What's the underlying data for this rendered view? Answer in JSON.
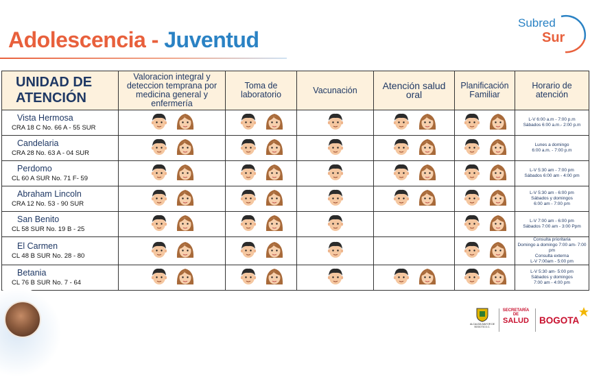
{
  "title": {
    "part1": "Adolescencia",
    "dash": " - ",
    "part2": "Juventud"
  },
  "logo": {
    "line1": "Subred",
    "line2": "Sur"
  },
  "table": {
    "headers": [
      "UNIDAD DE ATENCIÓN",
      "Valoracion integral y deteccion temprana por medicina general y enfermería",
      "Toma de laboratorio",
      "Vacunación",
      "Atención salud oral",
      "Planificación Familiar",
      "Horario de atención"
    ],
    "rows": [
      {
        "name": "Vista Hermosa",
        "address": "CRA 18 C No. 66 A - 55 SUR",
        "services": [
          "both",
          "both",
          "boy",
          "both",
          "both"
        ],
        "hours": [
          "L-V 6:00 a.m - 7:00 p.m",
          "Sábados 6:00 a.m.- 2:00 p.m"
        ]
      },
      {
        "name": "Candelaria",
        "address": "CRA 28 No. 63 A - 04 SUR",
        "services": [
          "both",
          "both",
          "boy",
          "both",
          "both"
        ],
        "hours": [
          "Lunes a domingo",
          "6:00 a.m. - 7:00 p.m"
        ]
      },
      {
        "name": "Perdomo",
        "address": "CL 60 A SUR No. 71 F- 59",
        "services": [
          "both",
          "both",
          "boy",
          "both",
          "both"
        ],
        "hours": [
          "L-V 5:30 am - 7:00 pm",
          "Sábados 6:00 am - 4:00 pm"
        ]
      },
      {
        "name": "Abraham Lincoln",
        "address": "CRA 12 No. 53 - 90 SUR",
        "services": [
          "both",
          "both",
          "boy",
          "both",
          "both"
        ],
        "hours": [
          "L-V 5:30 am - 6:00 pm",
          "Sábados y domingos",
          "6:00 am - 7:00 pm"
        ]
      },
      {
        "name": "San Benito",
        "address": "CL 58 SUR No. 19 B - 25",
        "services": [
          "both",
          "both",
          "boy",
          "none",
          "both"
        ],
        "hours": [
          "L-V 7:00 am - 6:00 pm",
          "Sábados 7:00 am - 3:00 Ppm"
        ]
      },
      {
        "name": "El Carmen",
        "address": "CL 48 B SUR No. 28 - 80",
        "services": [
          "both",
          "both",
          "boy",
          "none",
          "both"
        ],
        "hours": [
          "Consulta prioritaria",
          "Domingo a domingo 7:00 am- 7:00 pm",
          "Consulta externa",
          "L-V 7:00am - 5:00 pm"
        ]
      },
      {
        "name": "Betania",
        "address": "CL 76 B SUR No. 7 - 64",
        "services": [
          "both",
          "both",
          "boy",
          "both",
          "both"
        ],
        "hours": [
          "L-V 5:30 am- 5:00 pm",
          "Sábados y domingos",
          "7:00 am - 4:00 pm"
        ]
      }
    ]
  },
  "footer": {
    "alcaldia": "ALCALDÍA MAYOR DE BOGOTÁ D.C.",
    "secretaria_line1": "SECRETARÍA DE",
    "secretaria_line2": "SALUD",
    "bogota": "BOGOTA"
  }
}
